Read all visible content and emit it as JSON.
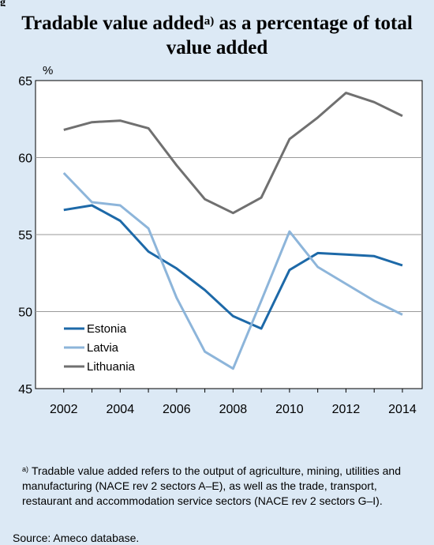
{
  "header": {
    "fig_label": "g",
    "title_line1_main": "Tradable value added",
    "title_sup": "a)",
    "title_line1_rest": " as a percentage of total",
    "title_line2": "value added"
  },
  "chart_data": {
    "type": "line",
    "ylabel": "%",
    "xlabel": "",
    "xlim": [
      2001,
      2014.7
    ],
    "ylim": [
      45,
      65
    ],
    "yticks": [
      45,
      50,
      55,
      60,
      65
    ],
    "xticks": [
      2002,
      2004,
      2006,
      2008,
      2010,
      2012,
      2014
    ],
    "grid": "horizontal",
    "legend": "bottom-left",
    "x": [
      2002,
      2003,
      2004,
      2005,
      2006,
      2007,
      2008,
      2009,
      2010,
      2011,
      2012,
      2013,
      2014
    ],
    "series": [
      {
        "name": "Estonia",
        "color": "#1d69a8",
        "values": [
          56.6,
          56.9,
          55.9,
          53.9,
          52.8,
          51.4,
          49.7,
          48.9,
          52.7,
          53.8,
          53.7,
          53.6,
          53.0
        ]
      },
      {
        "name": "Latvia",
        "color": "#8db5da",
        "values": [
          59.0,
          57.1,
          56.9,
          55.4,
          50.9,
          47.4,
          46.3,
          50.7,
          55.2,
          52.9,
          51.8,
          50.7,
          49.8
        ]
      },
      {
        "name": "Lithuania",
        "color": "#707070",
        "values": [
          61.8,
          62.3,
          62.4,
          61.9,
          59.5,
          57.3,
          56.4,
          57.4,
          61.2,
          62.6,
          64.2,
          63.6,
          62.7
        ]
      }
    ]
  },
  "footnote": {
    "marker": "a)",
    "text": "Tradable value added refers to the output of agriculture, mining, utilities and manufacturing (NACE rev 2 sectors A–E), as well as the trade, transport, restaurant and accommodation service sectors (NACE rev 2 sectors G–I)."
  },
  "source": "Source: Ameco database."
}
